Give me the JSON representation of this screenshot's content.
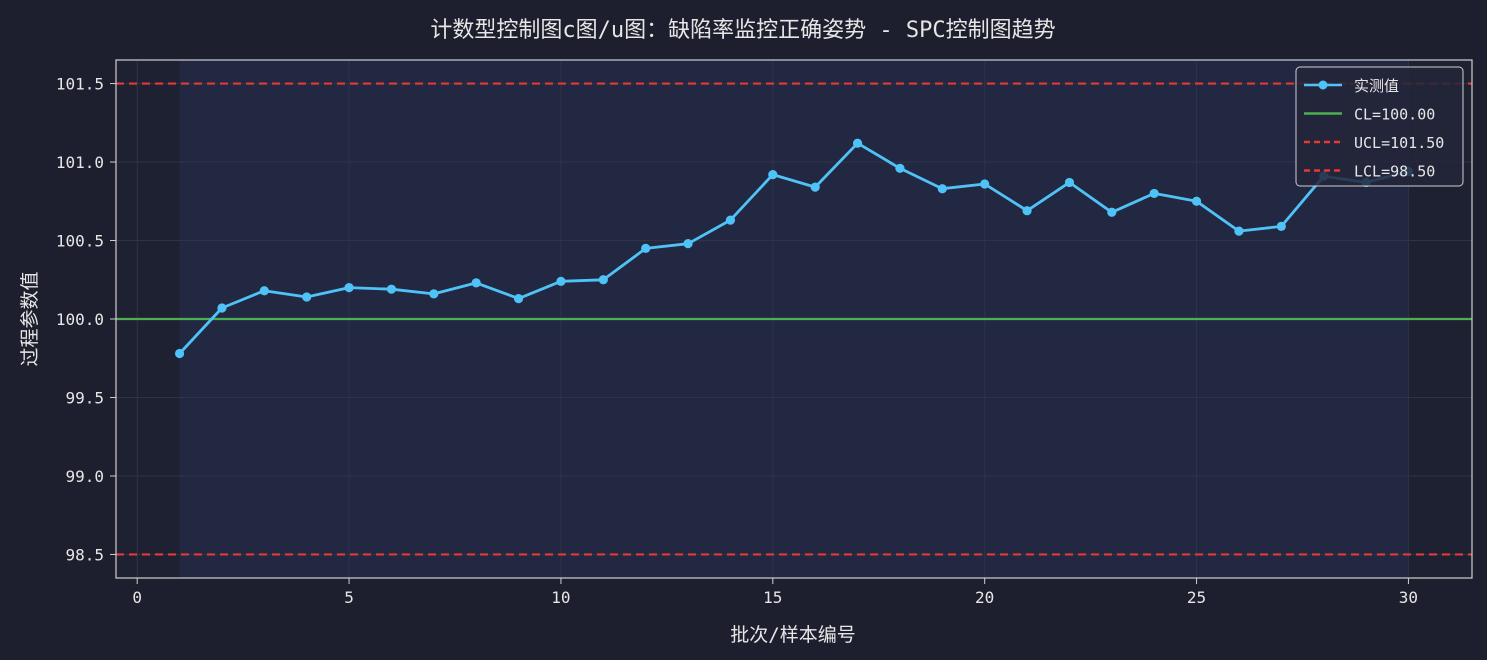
{
  "chart_data": {
    "type": "line",
    "title": "计数型控制图c图/u图：缺陷率监控正确姿势 - SPC控制图趋势",
    "xlabel": "批次/样本编号",
    "ylabel": "过程参数值",
    "xlim": [
      -0.5,
      31.5
    ],
    "ylim": [
      98.35,
      101.65
    ],
    "xticks": [
      0,
      5,
      10,
      15,
      20,
      25,
      30
    ],
    "xtick_labels": [
      "0",
      "5",
      "10",
      "15",
      "20",
      "25",
      "30"
    ],
    "yticks": [
      98.5,
      99.0,
      99.5,
      100.0,
      100.5,
      101.0,
      101.5
    ],
    "ytick_labels": [
      "98.5",
      "99.0",
      "99.5",
      "100.0",
      "100.5",
      "101.0",
      "101.5"
    ],
    "grid": true,
    "legend_position": "top-right",
    "series": [
      {
        "name": "实测值",
        "color": "#4fc3f7",
        "x": [
          1,
          2,
          3,
          4,
          5,
          6,
          7,
          8,
          9,
          10,
          11,
          12,
          13,
          14,
          15,
          16,
          17,
          18,
          19,
          20,
          21,
          22,
          23,
          24,
          25,
          26,
          27,
          28,
          29,
          30
        ],
        "values": [
          99.78,
          100.07,
          100.18,
          100.14,
          100.2,
          100.19,
          100.16,
          100.23,
          100.13,
          100.24,
          100.25,
          100.45,
          100.48,
          100.63,
          100.92,
          100.84,
          101.12,
          100.96,
          100.83,
          100.86,
          100.69,
          100.87,
          100.68,
          100.8,
          100.75,
          100.56,
          100.59,
          100.91,
          100.87,
          100.94
        ]
      }
    ],
    "reference_lines": [
      {
        "name": "CL=100.00",
        "value": 100.0,
        "color": "#4caf50",
        "style": "solid"
      },
      {
        "name": "UCL=101.50",
        "value": 101.5,
        "color": "#e53935",
        "style": "dashed"
      },
      {
        "name": "LCL=98.50",
        "value": 98.5,
        "color": "#e53935",
        "style": "dashed"
      }
    ],
    "colors": {
      "page_background": "#1e1f2e",
      "plot_background": "#1e2132",
      "shaded_region": "#222942",
      "axis": "#cfcfcf",
      "grid": "#2e3347"
    }
  }
}
